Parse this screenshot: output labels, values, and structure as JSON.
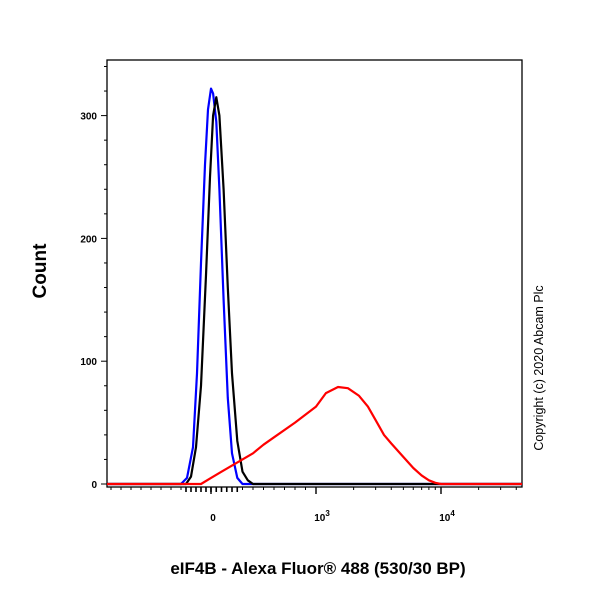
{
  "chart_data": {
    "type": "line",
    "xlabel": "eIF4B - Alexa Fluor® 488 (530/30 BP)",
    "ylabel": "Count",
    "copyright": "Copyright (c) 2020 Abcam Plc",
    "x_scale": "biexponential",
    "ylim": [
      0,
      345
    ],
    "x_ticks": [
      {
        "base": "0",
        "exp": ""
      },
      {
        "base": "10",
        "exp": "3"
      },
      {
        "base": "10",
        "exp": "4"
      }
    ],
    "y_ticks": [
      "0",
      "100",
      "200",
      "300"
    ],
    "y_tick_values": [
      0,
      100,
      200,
      300
    ],
    "series": [
      {
        "color": "#0000ff",
        "x": [
          -300,
          -240,
          -180,
          -140,
          -100,
          -60,
          -30,
          0,
          20,
          50,
          80,
          120,
          160,
          200,
          250,
          300
        ],
        "y": [
          0,
          5,
          30,
          90,
          180,
          260,
          305,
          322,
          318,
          295,
          240,
          150,
          70,
          25,
          5,
          0
        ]
      },
      {
        "color": "#000000",
        "x": [
          -250,
          -200,
          -150,
          -100,
          -50,
          -10,
          20,
          50,
          80,
          120,
          160,
          200,
          250,
          300,
          350,
          400
        ],
        "y": [
          0,
          6,
          30,
          80,
          170,
          250,
          300,
          315,
          300,
          240,
          160,
          90,
          35,
          10,
          3,
          0
        ]
      },
      {
        "color": "#ff0000",
        "x": [
          -100,
          0,
          100,
          200,
          300,
          400,
          500,
          600,
          800,
          1000,
          1200,
          1500,
          1800,
          2200,
          2600,
          3000,
          3500,
          4000,
          5000,
          6000,
          7000,
          8000,
          9000,
          10000
        ],
        "y": [
          0,
          5,
          10,
          15,
          20,
          25,
          32,
          38,
          50,
          63,
          74,
          79,
          78,
          72,
          63,
          52,
          40,
          33,
          22,
          13,
          7,
          3,
          1,
          0
        ]
      }
    ]
  }
}
